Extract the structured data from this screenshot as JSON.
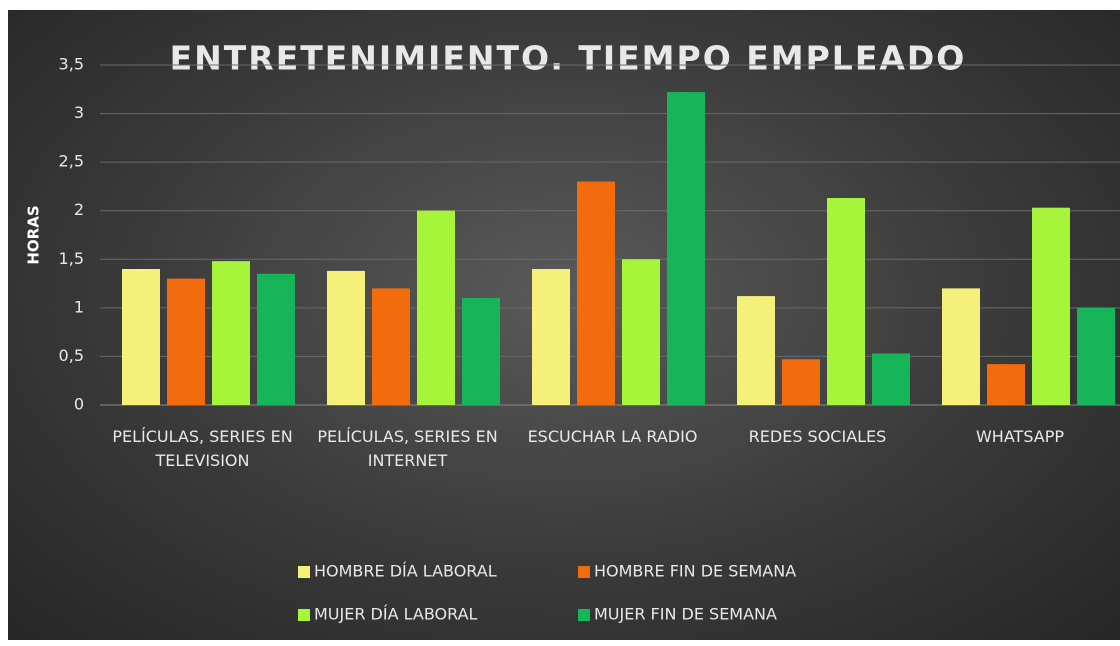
{
  "chart_data": {
    "type": "bar",
    "title": "ENTRETENIMIENTO. TIEMPO EMPLEADO",
    "y_label": "HORAS",
    "categories": [
      "PELÍCULAS, SERIES EN TELEVISION",
      "PELÍCULAS, SERIES EN INTERNET",
      "ESCUCHAR LA RADIO",
      "REDES SOCIALES",
      "WHATSAPP"
    ],
    "series": [
      {
        "name": "HOMBRE DÍA LABORAL",
        "color": "#f5f07a",
        "values": [
          1.4,
          1.38,
          1.4,
          1.12,
          1.2
        ]
      },
      {
        "name": "HOMBRE FIN DE SEMANA",
        "color": "#f26b0c",
        "values": [
          1.3,
          1.2,
          2.3,
          0.47,
          0.42
        ]
      },
      {
        "name": "MUJER DÍA LABORAL",
        "color": "#a6f53a",
        "values": [
          1.48,
          2.0,
          1.5,
          2.13,
          2.03
        ]
      },
      {
        "name": "MUJER FIN DE SEMANA",
        "color": "#17b55a",
        "values": [
          1.35,
          1.1,
          3.22,
          0.53,
          1.0
        ]
      }
    ],
    "ylim": [
      0,
      3.5
    ],
    "yticks": [
      0,
      {
        "value": 0.5,
        "label": "0,5"
      },
      1,
      {
        "value": 1.5,
        "label": "1,5"
      },
      2,
      {
        "value": 2.5,
        "label": "2,5"
      },
      3,
      {
        "value": 3.5,
        "label": "3,5"
      }
    ],
    "grid": true
  }
}
